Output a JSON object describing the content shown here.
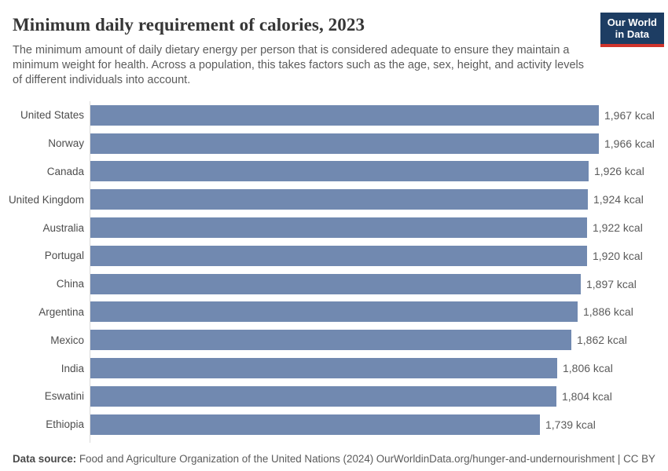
{
  "header": {
    "title": "Minimum daily requirement of calories, 2023",
    "subtitle": "The minimum amount of daily dietary energy per person that is considered adequate to ensure they maintain a minimum weight for health. Across a population, this takes factors such as the age, sex, height, and activity levels of different individuals into account.",
    "logo": {
      "line1": "Our World",
      "line2": "in Data",
      "background_color": "#1d3d63",
      "accent_color": "#d0342c"
    }
  },
  "chart_data": {
    "type": "bar",
    "orientation": "horizontal",
    "title": "Minimum daily requirement of calories, 2023",
    "unit": "kcal",
    "xlabel": "",
    "ylabel": "",
    "xlim": [
      0,
      1967
    ],
    "grid": false,
    "legend": false,
    "bar_color": "#7189b0",
    "categories": [
      "United States",
      "Norway",
      "Canada",
      "United Kingdom",
      "Australia",
      "Portugal",
      "China",
      "Argentina",
      "Mexico",
      "India",
      "Eswatini",
      "Ethiopia"
    ],
    "values": [
      1967,
      1966,
      1926,
      1924,
      1922,
      1920,
      1897,
      1886,
      1862,
      1806,
      1804,
      1739
    ],
    "value_labels": [
      "1,967 kcal",
      "1,966 kcal",
      "1,926 kcal",
      "1,924 kcal",
      "1,922 kcal",
      "1,920 kcal",
      "1,897 kcal",
      "1,886 kcal",
      "1,862 kcal",
      "1,806 kcal",
      "1,804 kcal",
      "1,739 kcal"
    ]
  },
  "footer": {
    "source_label": "Data source:",
    "source_text": " Food and Agriculture Organization of the United Nations (2024)",
    "link_text": "OurWorldinData.org/hunger-and-undernourishment | CC BY"
  }
}
